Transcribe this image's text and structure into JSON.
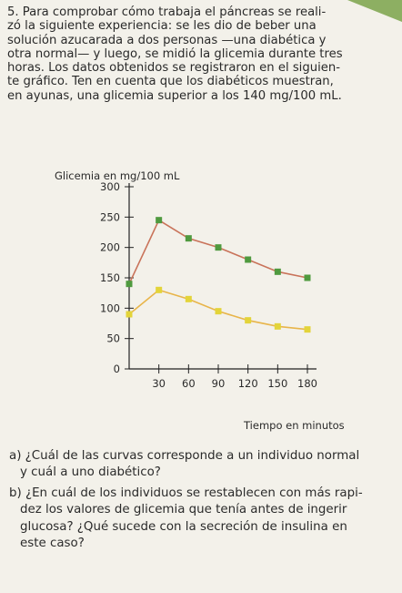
{
  "problem": {
    "number": "5.",
    "lines": [
      "Para comprobar cómo trabaja el páncreas se reali-",
      "zó la siguiente experiencia: se les dio de beber una",
      "solución azucarada a dos personas —una diabética y",
      "otra normal— y luego, se midió la glicemia durante tres",
      "horas. Los datos obtenidos se registraron en el siguien-",
      "te gráfico. Ten en cuenta que los diabéticos muestran,",
      "en ayunas, una glicemia superior a los 140 mg/100 mL."
    ]
  },
  "chart_data": {
    "type": "line",
    "ylabel": "Glicemia en mg/100 mL",
    "xlabel": "Tiempo en minutos",
    "x": [
      0,
      30,
      60,
      90,
      120,
      150,
      180
    ],
    "xticks": [
      "30",
      "60",
      "90",
      "120",
      "150",
      "180"
    ],
    "yticks": [
      "0",
      "50",
      "100",
      "150",
      "200",
      "250",
      "300"
    ],
    "ylim": [
      0,
      300
    ],
    "xlim": [
      0,
      180
    ],
    "series": [
      {
        "color": "#4f9a3f",
        "line_color": "#c9735a",
        "values": [
          140,
          245,
          215,
          200,
          180,
          160,
          150
        ]
      },
      {
        "color": "#e3d43a",
        "line_color": "#e8b54a",
        "values": [
          90,
          130,
          115,
          95,
          80,
          70,
          65
        ]
      }
    ]
  },
  "questions": [
    {
      "lines": [
        "a) ¿Cuál de las curvas corresponde a un individuo normal",
        "y cuál a uno diabético?"
      ]
    },
    {
      "lines": [
        "b) ¿En cuál de los individuos se restablecen con más rapi-",
        "dez los valores de glicemia que tenía antes de ingerir",
        "glucosa? ¿Qué sucede con la secreción de insulina en",
        "este caso?"
      ]
    }
  ]
}
